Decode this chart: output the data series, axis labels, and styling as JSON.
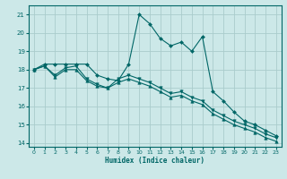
{
  "bg_color": "#cce8e8",
  "grid_color": "#aacccc",
  "line_color": "#006666",
  "xlabel": "Humidex (Indice chaleur)",
  "ylim": [
    13.8,
    21.5
  ],
  "xlim": [
    -0.5,
    23.5
  ],
  "yticks": [
    14,
    15,
    16,
    17,
    18,
    19,
    20,
    21
  ],
  "xticks": [
    0,
    1,
    2,
    3,
    4,
    5,
    6,
    7,
    8,
    9,
    10,
    11,
    12,
    13,
    14,
    15,
    16,
    17,
    18,
    19,
    20,
    21,
    22,
    23
  ],
  "series": [
    {
      "x": [
        0,
        1,
        2,
        3,
        4,
        5,
        6,
        7,
        8,
        9,
        10,
        11,
        12,
        13,
        14,
        15,
        16,
        17,
        18,
        19,
        20,
        21,
        22,
        23
      ],
      "y": [
        18.0,
        18.3,
        18.3,
        18.3,
        18.3,
        18.3,
        17.7,
        17.5,
        17.4,
        18.3,
        21.0,
        20.5,
        19.7,
        19.3,
        19.5,
        19.0,
        19.8,
        16.8,
        16.3,
        15.7,
        15.2,
        15.0,
        14.7,
        14.4
      ],
      "marker": "D",
      "markersize": 2.0,
      "lw": 0.8
    },
    {
      "x": [
        0,
        1,
        2,
        3,
        4,
        5,
        6,
        7,
        8,
        9,
        10,
        11,
        12,
        13,
        14,
        15,
        16,
        17,
        18,
        19,
        20,
        21,
        22,
        23
      ],
      "y": [
        18.0,
        18.2,
        17.7,
        18.1,
        18.2,
        17.5,
        17.2,
        17.0,
        17.5,
        17.7,
        17.5,
        17.3,
        17.0,
        16.7,
        16.8,
        16.5,
        16.3,
        15.8,
        15.5,
        15.2,
        15.0,
        14.8,
        14.5,
        14.3
      ],
      "marker": "v",
      "markersize": 2.5,
      "lw": 0.8
    },
    {
      "x": [
        0,
        1,
        2,
        3,
        4,
        5,
        6,
        7,
        8,
        9,
        10,
        11,
        12,
        13,
        14,
        15,
        16,
        17,
        18,
        19,
        20,
        21,
        22,
        23
      ],
      "y": [
        18.0,
        18.2,
        17.6,
        18.0,
        18.0,
        17.4,
        17.1,
        17.0,
        17.3,
        17.5,
        17.3,
        17.1,
        16.8,
        16.5,
        16.6,
        16.3,
        16.1,
        15.6,
        15.3,
        15.0,
        14.8,
        14.6,
        14.3,
        14.1
      ],
      "marker": "^",
      "markersize": 2.5,
      "lw": 0.8
    }
  ]
}
